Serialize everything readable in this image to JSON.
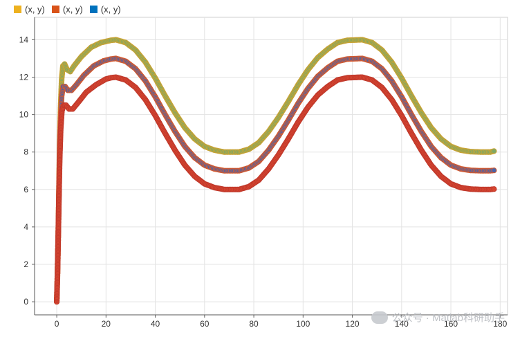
{
  "chart_data": {
    "type": "scatter",
    "title": "",
    "xlabel": "",
    "ylabel": "",
    "xlim": [
      -9,
      183
    ],
    "ylim": [
      -0.7,
      15.2
    ],
    "grid": true,
    "legend_position": "top-left",
    "x_ticks": [
      "0",
      "20",
      "40",
      "60",
      "80",
      "100",
      "120",
      "140",
      "160",
      "180"
    ],
    "y_ticks": [
      "0",
      "2",
      "4",
      "6",
      "8",
      "10",
      "12",
      "14"
    ],
    "series": [
      {
        "name": "(x, y)",
        "color": "#EDB120",
        "marker_fill": "#7fa863",
        "marker_edge": "#c9a334",
        "points": [
          [
            0,
            0
          ],
          [
            0.3,
            1.5
          ],
          [
            0.6,
            3.5
          ],
          [
            0.9,
            6
          ],
          [
            1.2,
            8.5
          ],
          [
            1.6,
            10.5
          ],
          [
            2,
            11.9
          ],
          [
            2.5,
            12.6
          ],
          [
            3.2,
            12.7
          ],
          [
            4.2,
            12.4
          ],
          [
            5.5,
            12.3
          ],
          [
            7,
            12.6
          ],
          [
            10,
            13.1
          ],
          [
            14,
            13.6
          ],
          [
            18,
            13.85
          ],
          [
            22,
            13.97
          ],
          [
            24,
            14
          ],
          [
            28,
            13.85
          ],
          [
            32,
            13.45
          ],
          [
            36,
            12.8
          ],
          [
            40,
            11.95
          ],
          [
            44,
            11.0
          ],
          [
            48,
            10.1
          ],
          [
            52,
            9.3
          ],
          [
            56,
            8.7
          ],
          [
            60,
            8.3
          ],
          [
            64,
            8.1
          ],
          [
            68,
            8.0
          ],
          [
            72,
            8.0
          ],
          [
            74,
            8.0
          ],
          [
            78,
            8.15
          ],
          [
            82,
            8.5
          ],
          [
            86,
            9.1
          ],
          [
            90,
            9.85
          ],
          [
            94,
            10.7
          ],
          [
            98,
            11.6
          ],
          [
            102,
            12.4
          ],
          [
            106,
            13.05
          ],
          [
            110,
            13.5
          ],
          [
            114,
            13.85
          ],
          [
            118,
            13.97
          ],
          [
            124,
            14.0
          ],
          [
            128,
            13.85
          ],
          [
            132,
            13.45
          ],
          [
            136,
            12.8
          ],
          [
            140,
            11.95
          ],
          [
            144,
            11.0
          ],
          [
            148,
            10.1
          ],
          [
            152,
            9.3
          ],
          [
            156,
            8.7
          ],
          [
            160,
            8.3
          ],
          [
            164,
            8.1
          ],
          [
            168,
            8.02
          ],
          [
            172,
            8.0
          ],
          [
            176,
            8.0
          ],
          [
            177.5,
            8.05
          ]
        ]
      },
      {
        "name": "(x, y)",
        "color": "#D95319",
        "marker_fill": "#4b63a6",
        "marker_edge": "#d65a2e",
        "points": [
          [
            0,
            0
          ],
          [
            0.3,
            1.5
          ],
          [
            0.6,
            3.5
          ],
          [
            0.9,
            5.8
          ],
          [
            1.2,
            8
          ],
          [
            1.6,
            9.8
          ],
          [
            2,
            11
          ],
          [
            2.6,
            11.5
          ],
          [
            3.4,
            11.5
          ],
          [
            4.5,
            11.3
          ],
          [
            6,
            11.3
          ],
          [
            8,
            11.6
          ],
          [
            11,
            12.1
          ],
          [
            15,
            12.6
          ],
          [
            19,
            12.87
          ],
          [
            22,
            12.97
          ],
          [
            24,
            13
          ],
          [
            28,
            12.85
          ],
          [
            32,
            12.45
          ],
          [
            36,
            11.8
          ],
          [
            40,
            10.95
          ],
          [
            44,
            10.0
          ],
          [
            48,
            9.1
          ],
          [
            52,
            8.3
          ],
          [
            56,
            7.7
          ],
          [
            60,
            7.3
          ],
          [
            64,
            7.1
          ],
          [
            68,
            7.0
          ],
          [
            72,
            7.0
          ],
          [
            74,
            7.0
          ],
          [
            78,
            7.15
          ],
          [
            82,
            7.5
          ],
          [
            86,
            8.1
          ],
          [
            90,
            8.85
          ],
          [
            94,
            9.7
          ],
          [
            98,
            10.6
          ],
          [
            102,
            11.4
          ],
          [
            106,
            12.05
          ],
          [
            110,
            12.5
          ],
          [
            114,
            12.85
          ],
          [
            118,
            12.97
          ],
          [
            124,
            13.0
          ],
          [
            128,
            12.85
          ],
          [
            132,
            12.45
          ],
          [
            136,
            11.8
          ],
          [
            140,
            10.95
          ],
          [
            144,
            10.0
          ],
          [
            148,
            9.1
          ],
          [
            152,
            8.3
          ],
          [
            156,
            7.7
          ],
          [
            160,
            7.3
          ],
          [
            164,
            7.1
          ],
          [
            168,
            7.02
          ],
          [
            172,
            7.0
          ],
          [
            176,
            7.0
          ],
          [
            177.5,
            7.02
          ]
        ]
      },
      {
        "name": "(x, y)",
        "color": "#0072BD",
        "marker_fill": "#d64530",
        "marker_edge": "#c1392b",
        "points": [
          [
            0,
            0
          ],
          [
            0.3,
            1.5
          ],
          [
            0.6,
            3.5
          ],
          [
            0.9,
            5.6
          ],
          [
            1.2,
            7.6
          ],
          [
            1.6,
            9.2
          ],
          [
            2.1,
            10.2
          ],
          [
            2.8,
            10.5
          ],
          [
            3.8,
            10.5
          ],
          [
            5,
            10.3
          ],
          [
            6.5,
            10.3
          ],
          [
            9,
            10.7
          ],
          [
            12,
            11.2
          ],
          [
            16,
            11.6
          ],
          [
            20,
            11.9
          ],
          [
            22,
            11.97
          ],
          [
            24,
            12
          ],
          [
            28,
            11.85
          ],
          [
            32,
            11.45
          ],
          [
            36,
            10.8
          ],
          [
            40,
            9.95
          ],
          [
            44,
            9.0
          ],
          [
            48,
            8.1
          ],
          [
            52,
            7.3
          ],
          [
            56,
            6.7
          ],
          [
            60,
            6.3
          ],
          [
            64,
            6.1
          ],
          [
            68,
            6.0
          ],
          [
            72,
            6.0
          ],
          [
            74,
            6.0
          ],
          [
            78,
            6.15
          ],
          [
            82,
            6.5
          ],
          [
            86,
            7.1
          ],
          [
            90,
            7.85
          ],
          [
            94,
            8.7
          ],
          [
            98,
            9.6
          ],
          [
            102,
            10.4
          ],
          [
            106,
            11.05
          ],
          [
            110,
            11.5
          ],
          [
            114,
            11.85
          ],
          [
            118,
            11.97
          ],
          [
            124,
            12.0
          ],
          [
            128,
            11.85
          ],
          [
            132,
            11.45
          ],
          [
            136,
            10.8
          ],
          [
            140,
            9.95
          ],
          [
            144,
            9.0
          ],
          [
            148,
            8.1
          ],
          [
            152,
            7.3
          ],
          [
            156,
            6.7
          ],
          [
            160,
            6.3
          ],
          [
            164,
            6.1
          ],
          [
            168,
            6.02
          ],
          [
            172,
            6.0
          ],
          [
            176,
            6.0
          ],
          [
            177.5,
            6.02
          ]
        ]
      }
    ]
  },
  "watermark": {
    "icon": "wechat-icon",
    "text": "公众号 · Matlab科研助手"
  }
}
